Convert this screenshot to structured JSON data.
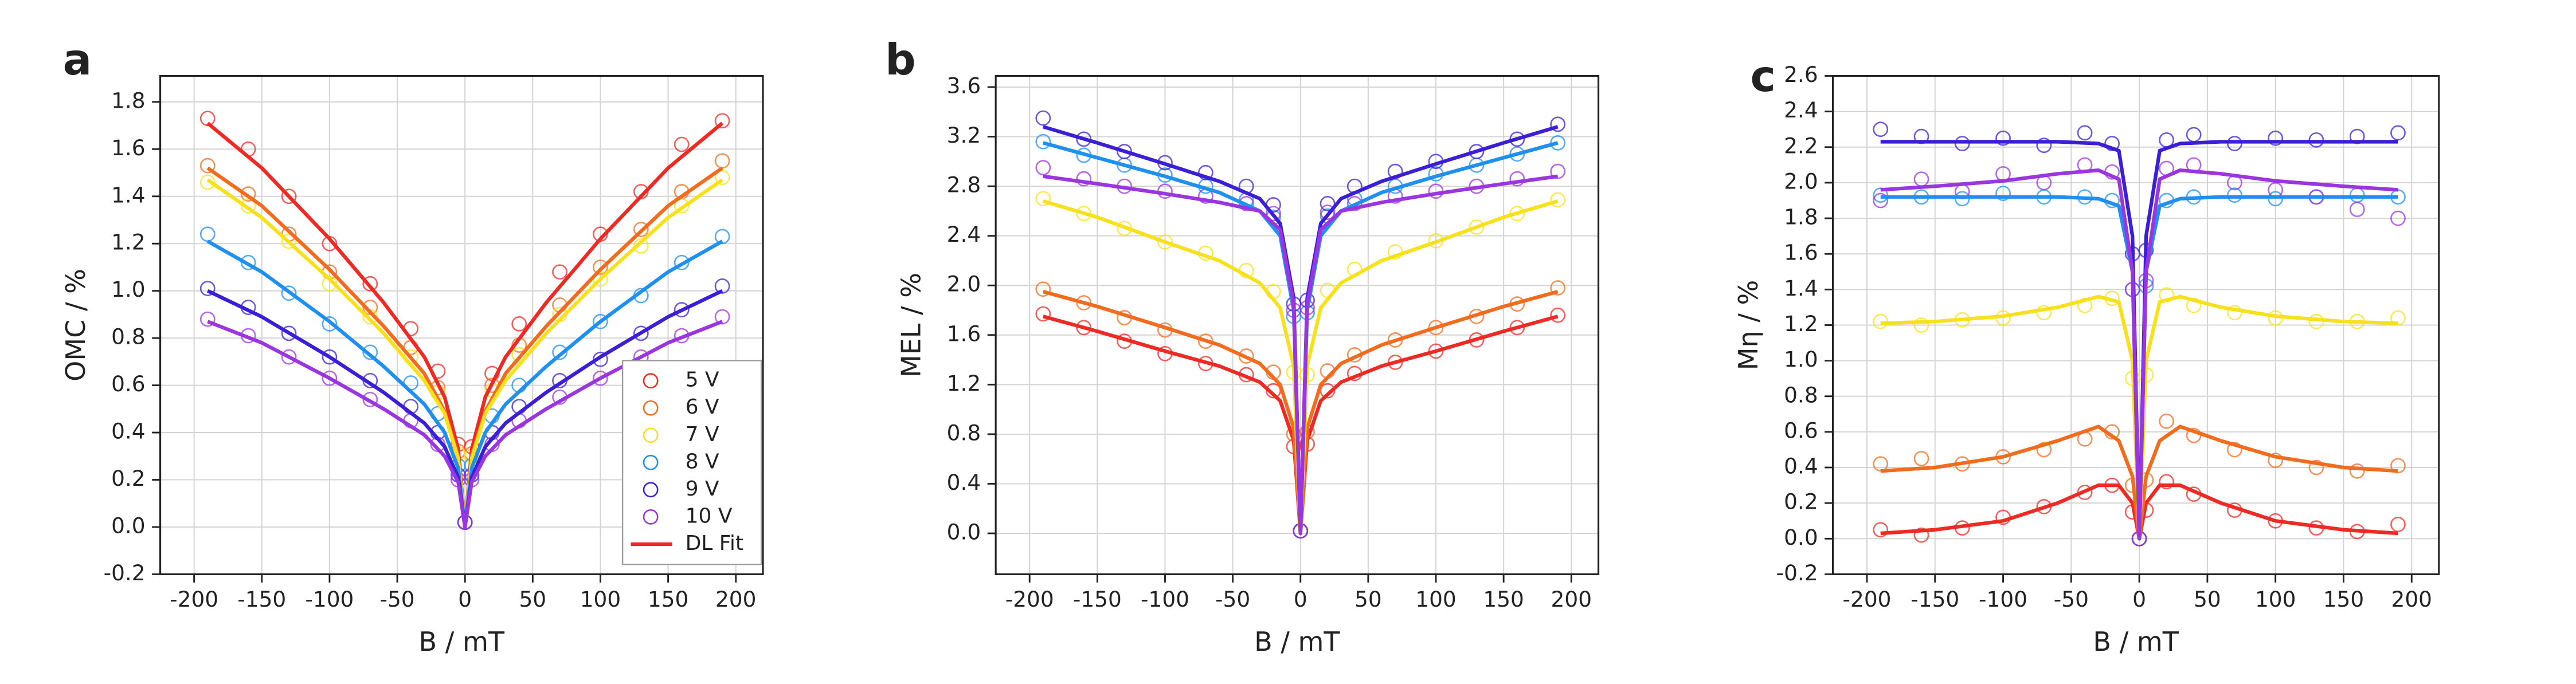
{
  "chart_data": [
    {
      "type": "scatter",
      "panel_label": "a",
      "xlabel": "B / mT",
      "ylabel": "OMC / %",
      "xlim": [
        -225,
        220
      ],
      "ylim": [
        -0.2,
        1.91
      ],
      "xticks": [
        -200,
        -150,
        -100,
        -50,
        0,
        50,
        100,
        150,
        200
      ],
      "yticks": [
        -0.2,
        {
          "value": 0,
          "label": "0.0"
        },
        0.2,
        0.4,
        0.6,
        0.8,
        {
          "value": 1,
          "label": "1.0"
        },
        1.2,
        1.4,
        1.6,
        1.8
      ],
      "grid": true,
      "legend": "lower right",
      "fit_name": "DL Fit",
      "x": [
        -190,
        -160,
        -130,
        -100,
        -70,
        -40,
        -20,
        -5,
        0,
        5,
        20,
        40,
        70,
        100,
        130,
        160,
        190
      ],
      "fit_x": [
        -190,
        -150,
        -100,
        -60,
        -30,
        -15,
        -5,
        0,
        5,
        15,
        30,
        60,
        100,
        150,
        190
      ],
      "series": [
        {
          "name": "5 V",
          "color": "#ee2a24",
          "values": [
            1.73,
            1.6,
            1.4,
            1.2,
            1.03,
            0.84,
            0.66,
            0.35,
            0.02,
            0.34,
            0.65,
            0.86,
            1.08,
            1.24,
            1.42,
            1.62,
            1.72
          ],
          "fit_values": [
            1.71,
            1.52,
            1.22,
            0.95,
            0.72,
            0.55,
            0.33,
            0,
            0.33,
            0.55,
            0.72,
            0.95,
            1.22,
            1.52,
            1.71
          ]
        },
        {
          "name": "6 V",
          "color": "#f26c1f",
          "values": [
            1.53,
            1.41,
            1.24,
            1.08,
            0.93,
            0.76,
            0.59,
            0.32,
            0.02,
            0.31,
            0.6,
            0.77,
            0.94,
            1.1,
            1.26,
            1.42,
            1.55
          ],
          "fit_values": [
            1.52,
            1.36,
            1.09,
            0.85,
            0.65,
            0.49,
            0.3,
            0,
            0.3,
            0.49,
            0.65,
            0.85,
            1.09,
            1.36,
            1.52
          ]
        },
        {
          "name": "7 V",
          "color": "#f7e11c",
          "values": [
            1.46,
            1.36,
            1.21,
            1.03,
            0.89,
            0.72,
            0.57,
            0.31,
            0.02,
            0.3,
            0.58,
            0.73,
            0.9,
            1.05,
            1.19,
            1.36,
            1.48
          ],
          "fit_values": [
            1.47,
            1.31,
            1.05,
            0.82,
            0.62,
            0.48,
            0.29,
            0,
            0.29,
            0.48,
            0.62,
            0.82,
            1.05,
            1.31,
            1.47
          ]
        },
        {
          "name": "8 V",
          "color": "#1f8ff0",
          "values": [
            1.24,
            1.12,
            0.99,
            0.86,
            0.74,
            0.61,
            0.48,
            0.26,
            0.02,
            0.26,
            0.47,
            0.6,
            0.74,
            0.87,
            0.98,
            1.12,
            1.23
          ],
          "fit_values": [
            1.21,
            1.08,
            0.87,
            0.68,
            0.52,
            0.4,
            0.25,
            0,
            0.25,
            0.4,
            0.52,
            0.68,
            0.87,
            1.08,
            1.21
          ]
        },
        {
          "name": "9 V",
          "color": "#3a1fd6",
          "values": [
            1.01,
            0.93,
            0.82,
            0.72,
            0.62,
            0.51,
            0.4,
            0.22,
            0.02,
            0.22,
            0.4,
            0.51,
            0.62,
            0.71,
            0.82,
            0.92,
            1.02
          ],
          "fit_values": [
            1.0,
            0.89,
            0.72,
            0.57,
            0.44,
            0.34,
            0.21,
            0,
            0.21,
            0.34,
            0.44,
            0.57,
            0.72,
            0.89,
            1.0
          ]
        },
        {
          "name": "10 V",
          "color": "#9b35e0",
          "values": [
            0.88,
            0.81,
            0.72,
            0.63,
            0.54,
            0.45,
            0.35,
            0.2,
            0.02,
            0.2,
            0.35,
            0.45,
            0.55,
            0.63,
            0.72,
            0.81,
            0.89
          ],
          "fit_values": [
            0.87,
            0.78,
            0.63,
            0.5,
            0.39,
            0.3,
            0.19,
            0,
            0.19,
            0.3,
            0.39,
            0.5,
            0.63,
            0.78,
            0.87
          ]
        }
      ]
    },
    {
      "type": "scatter",
      "panel_label": "b",
      "xlabel": "B / mT",
      "ylabel": "MEL / %",
      "xlim": [
        -225,
        220
      ],
      "ylim": [
        -0.33,
        3.69
      ],
      "xticks": [
        -200,
        -150,
        -100,
        -50,
        0,
        50,
        100,
        150,
        200
      ],
      "yticks": [
        {
          "value": 0,
          "label": "0.0"
        },
        0.4,
        0.8,
        1.2,
        1.6,
        {
          "value": 2,
          "label": "2.0"
        },
        2.4,
        2.8,
        3.2,
        3.6
      ],
      "grid": true,
      "x": [
        -190,
        -160,
        -130,
        -100,
        -70,
        -40,
        -20,
        -5,
        0,
        5,
        20,
        40,
        70,
        100,
        130,
        160,
        190
      ],
      "fit_x": [
        -190,
        -150,
        -100,
        -60,
        -30,
        -15,
        -5,
        0,
        5,
        15,
        30,
        60,
        100,
        150,
        190
      ],
      "series": [
        {
          "color": "#ee2a24",
          "values": [
            1.77,
            1.66,
            1.55,
            1.45,
            1.37,
            1.28,
            1.15,
            0.7,
            0.02,
            0.72,
            1.15,
            1.29,
            1.38,
            1.47,
            1.56,
            1.66,
            1.76
          ],
          "fit_values": [
            1.75,
            1.63,
            1.47,
            1.35,
            1.22,
            1.07,
            0.75,
            0,
            0.75,
            1.07,
            1.22,
            1.35,
            1.47,
            1.63,
            1.75
          ]
        },
        {
          "color": "#f26c1f",
          "values": [
            1.97,
            1.86,
            1.74,
            1.64,
            1.55,
            1.43,
            1.3,
            0.8,
            0.02,
            0.82,
            1.31,
            1.44,
            1.56,
            1.66,
            1.75,
            1.85,
            1.98
          ],
          "fit_values": [
            1.95,
            1.83,
            1.66,
            1.52,
            1.37,
            1.2,
            0.85,
            0,
            0.85,
            1.2,
            1.37,
            1.52,
            1.66,
            1.83,
            1.95
          ]
        },
        {
          "color": "#f7e11c",
          "values": [
            2.7,
            2.58,
            2.46,
            2.35,
            2.26,
            2.12,
            1.95,
            1.3,
            0.02,
            1.28,
            1.96,
            2.13,
            2.27,
            2.36,
            2.47,
            2.58,
            2.69
          ],
          "fit_values": [
            2.68,
            2.55,
            2.35,
            2.2,
            2.02,
            1.82,
            1.35,
            0,
            1.35,
            1.82,
            2.02,
            2.2,
            2.35,
            2.55,
            2.68
          ]
        },
        {
          "color": "#1f8ff0",
          "values": [
            3.16,
            3.05,
            2.97,
            2.89,
            2.8,
            2.69,
            2.55,
            1.75,
            0.02,
            1.78,
            2.56,
            2.7,
            2.8,
            2.9,
            2.97,
            3.06,
            3.15
          ],
          "fit_values": [
            3.15,
            3.03,
            2.88,
            2.75,
            2.6,
            2.4,
            1.8,
            0,
            1.8,
            2.4,
            2.6,
            2.75,
            2.88,
            3.03,
            3.15
          ]
        },
        {
          "color": "#3a1fd6",
          "values": [
            3.35,
            3.18,
            3.08,
            2.99,
            2.91,
            2.8,
            2.65,
            1.85,
            0.02,
            1.88,
            2.66,
            2.8,
            2.92,
            3.0,
            3.08,
            3.18,
            3.3
          ],
          "fit_values": [
            3.28,
            3.15,
            2.98,
            2.84,
            2.7,
            2.5,
            1.9,
            0,
            1.9,
            2.5,
            2.7,
            2.84,
            2.98,
            3.15,
            3.28
          ]
        },
        {
          "color": "#9b35e0",
          "values": [
            2.95,
            2.86,
            2.8,
            2.76,
            2.72,
            2.66,
            2.58,
            1.8,
            0.02,
            1.82,
            2.59,
            2.66,
            2.72,
            2.76,
            2.8,
            2.86,
            2.92
          ],
          "fit_values": [
            2.88,
            2.82,
            2.74,
            2.67,
            2.6,
            2.45,
            1.85,
            0,
            1.85,
            2.45,
            2.6,
            2.67,
            2.74,
            2.82,
            2.88
          ]
        }
      ]
    },
    {
      "type": "scatter",
      "panel_label": "c",
      "xlabel": "B / mT",
      "ylabel": "Mη / %",
      "xlim": [
        -225,
        220
      ],
      "ylim": [
        -0.2,
        2.6
      ],
      "xticks": [
        -200,
        -150,
        -100,
        -50,
        0,
        50,
        100,
        150,
        200
      ],
      "yticks": [
        -0.2,
        {
          "value": 0,
          "label": "0.0"
        },
        0.2,
        0.4,
        0.6,
        0.8,
        {
          "value": 1,
          "label": "1.0"
        },
        1.2,
        1.4,
        1.6,
        1.8,
        {
          "value": 2,
          "label": "2.0"
        },
        2.2,
        2.4,
        2.6
      ],
      "grid": true,
      "x": [
        -190,
        -160,
        -130,
        -100,
        -70,
        -40,
        -20,
        -5,
        0,
        5,
        20,
        40,
        70,
        100,
        130,
        160,
        190
      ],
      "fit_x": [
        -190,
        -150,
        -100,
        -60,
        -30,
        -15,
        -5,
        0,
        5,
        15,
        30,
        60,
        100,
        150,
        190
      ],
      "series": [
        {
          "color": "#ee2a24",
          "values": [
            0.05,
            0.02,
            0.06,
            0.12,
            0.18,
            0.26,
            0.3,
            0.15,
            0.0,
            0.16,
            0.32,
            0.25,
            0.16,
            0.1,
            0.06,
            0.04,
            0.08
          ],
          "fit_values": [
            0.03,
            0.05,
            0.1,
            0.2,
            0.3,
            0.3,
            0.2,
            0,
            0.2,
            0.3,
            0.3,
            0.2,
            0.1,
            0.05,
            0.03
          ]
        },
        {
          "color": "#f26c1f",
          "values": [
            0.42,
            0.45,
            0.42,
            0.46,
            0.5,
            0.56,
            0.6,
            0.3,
            0.0,
            0.33,
            0.66,
            0.58,
            0.5,
            0.44,
            0.4,
            0.38,
            0.41
          ],
          "fit_values": [
            0.38,
            0.4,
            0.46,
            0.55,
            0.63,
            0.55,
            0.35,
            0,
            0.35,
            0.55,
            0.63,
            0.55,
            0.46,
            0.4,
            0.38
          ]
        },
        {
          "color": "#f7e11c",
          "values": [
            1.22,
            1.2,
            1.23,
            1.24,
            1.27,
            1.31,
            1.35,
            0.9,
            0.0,
            0.92,
            1.37,
            1.31,
            1.27,
            1.24,
            1.22,
            1.22,
            1.24
          ],
          "fit_values": [
            1.21,
            1.22,
            1.25,
            1.3,
            1.36,
            1.33,
            1.0,
            0,
            1.0,
            1.33,
            1.36,
            1.3,
            1.25,
            1.22,
            1.21
          ]
        },
        {
          "color": "#1f8ff0",
          "values": [
            1.93,
            1.92,
            1.91,
            1.94,
            1.92,
            1.92,
            1.9,
            1.4,
            0.0,
            1.42,
            1.9,
            1.92,
            1.93,
            1.91,
            1.92,
            1.93,
            1.92
          ],
          "fit_values": [
            1.92,
            1.92,
            1.92,
            1.92,
            1.91,
            1.87,
            1.5,
            0,
            1.5,
            1.87,
            1.91,
            1.92,
            1.92,
            1.92,
            1.92
          ]
        },
        {
          "color": "#3a1fd6",
          "values": [
            2.3,
            2.26,
            2.22,
            2.25,
            2.21,
            2.28,
            2.22,
            1.6,
            0.0,
            1.62,
            2.24,
            2.27,
            2.22,
            2.25,
            2.24,
            2.26,
            2.28
          ],
          "fit_values": [
            2.23,
            2.23,
            2.23,
            2.23,
            2.22,
            2.18,
            1.7,
            0,
            1.7,
            2.18,
            2.22,
            2.23,
            2.23,
            2.23,
            2.23
          ]
        },
        {
          "color": "#9b35e0",
          "values": [
            1.9,
            2.02,
            1.95,
            2.05,
            2.0,
            2.1,
            2.06,
            1.4,
            0.0,
            1.45,
            2.08,
            2.1,
            2.0,
            1.96,
            1.92,
            1.85,
            1.8
          ],
          "fit_values": [
            1.96,
            1.98,
            2.01,
            2.05,
            2.07,
            2.02,
            1.5,
            0,
            1.5,
            2.02,
            2.07,
            2.05,
            2.01,
            1.98,
            1.96
          ]
        }
      ]
    }
  ]
}
